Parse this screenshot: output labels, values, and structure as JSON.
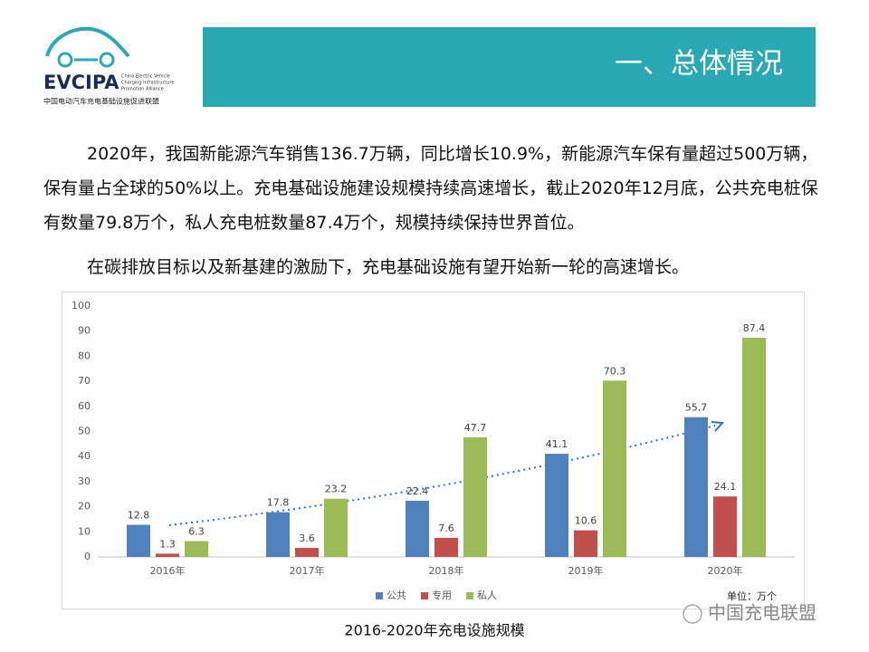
{
  "logo": {
    "name": "EVCIPA",
    "english": [
      "China Electric Vehicle",
      "Charging Infrastructure",
      "Promotion Alliance"
    ],
    "chinese": "中国电动汽车充电基础设施促进联盟"
  },
  "header": {
    "title": "一、总体情况"
  },
  "paragraphs": [
    "2020年，我国新能源汽车销售136.7万辆，同比增长10.9%，新能源汽车保有量超过500万辆，保有量占全球的50%以上。充电基础设施建设规模持续高速增长，截止2020年12月底，公共充电桩保有数量79.8万个，私人充电桩数量87.4万个，规模持续保持世界首位。",
    "在碳排放目标以及新基建的激励下，充电基础设施有望开始新一轮的高速增长。"
  ],
  "chart_data": {
    "type": "bar",
    "categories": [
      "2016年",
      "2017年",
      "2018年",
      "2019年",
      "2020年"
    ],
    "series": [
      {
        "name": "公共",
        "color": "#4f81bd",
        "values": [
          12.8,
          17.8,
          22.4,
          41.1,
          55.7
        ]
      },
      {
        "name": "专用",
        "color": "#c0504d",
        "values": [
          1.3,
          3.6,
          7.6,
          10.6,
          24.1
        ]
      },
      {
        "name": "私人",
        "color": "#9bbb59",
        "values": [
          6.3,
          23.2,
          47.7,
          70.3,
          87.4
        ]
      }
    ],
    "ylim": [
      0,
      100
    ],
    "yticks": [
      0,
      10,
      20,
      30,
      40,
      50,
      60,
      70,
      80,
      90,
      100
    ],
    "grid": false,
    "unit_label": "单位：万个",
    "legend": "bottom"
  },
  "caption": "2016-2020年充电设施规模",
  "watermark": "中国充电联盟"
}
